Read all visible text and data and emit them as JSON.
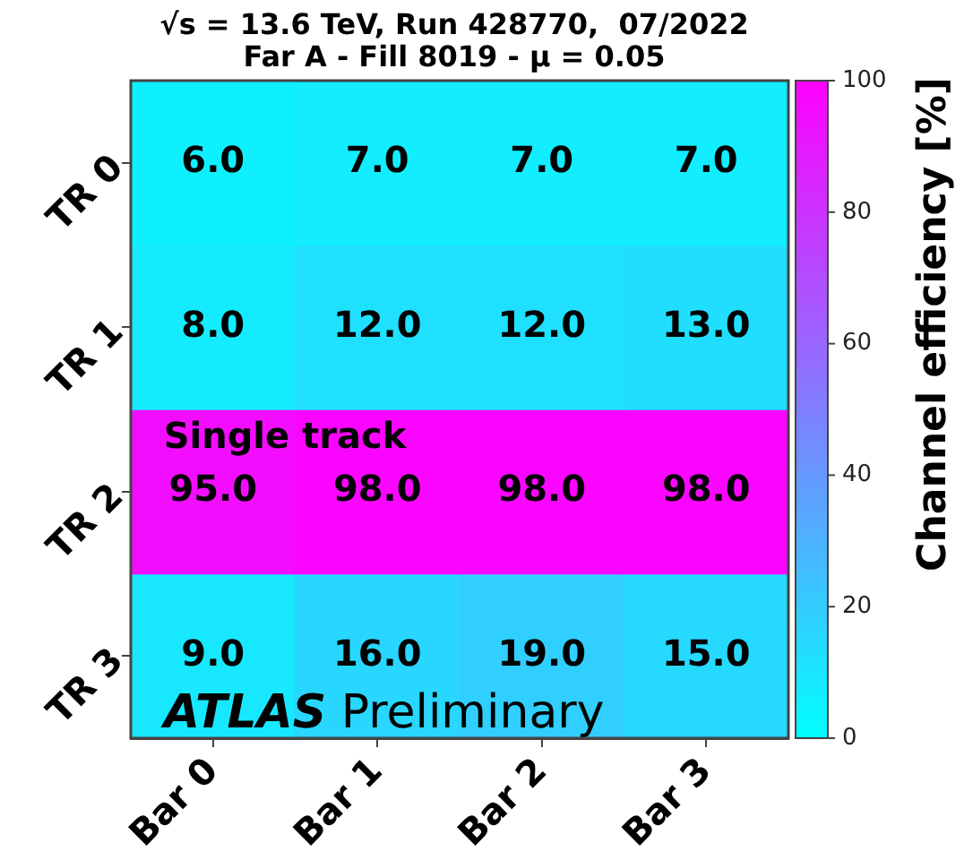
{
  "chart_data": {
    "type": "heatmap",
    "title": "√s = 13.6 TeV, Run 428770,  07/2022",
    "subtitle": "Far A - Fill 8019 - μ = 0.05",
    "clabel": "Channel efficiency [%]",
    "categories": [
      "Bar 0",
      "Bar 1",
      "Bar 2",
      "Bar 3"
    ],
    "y_categories": [
      "TR 0",
      "TR 1",
      "TR 2",
      "TR 3"
    ],
    "cells": [
      [
        6,
        7,
        7,
        7
      ],
      [
        8,
        12,
        12,
        13
      ],
      [
        95,
        98,
        98,
        98
      ],
      [
        9,
        16,
        19,
        15
      ]
    ],
    "cell_labels": [
      [
        "6.0",
        "7.0",
        "7.0",
        "7.0"
      ],
      [
        "8.0",
        "12.0",
        "12.0",
        "13.0"
      ],
      [
        "95.0",
        "98.0",
        "98.0",
        "98.0"
      ],
      [
        "9.0",
        "16.0",
        "19.0",
        "15.0"
      ]
    ],
    "clim": [
      0,
      100
    ],
    "cticks": [
      0,
      20,
      40,
      60,
      80,
      100
    ],
    "annotations": [
      "Single track",
      "ATLAS Preliminary"
    ]
  }
}
